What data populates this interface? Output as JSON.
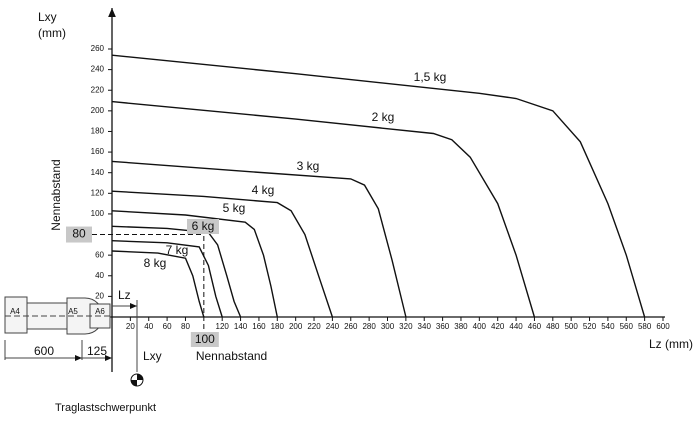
{
  "chart_data": {
    "type": "line",
    "y_label": "Lxy",
    "y_unit": "(mm)",
    "y_side_label": "Nennabstand",
    "x_label": "Lz (mm)",
    "xlim": [
      0,
      600
    ],
    "ylim": [
      0,
      260
    ],
    "xticks": [
      20,
      40,
      60,
      80,
      120,
      140,
      160,
      180,
      200,
      220,
      240,
      260,
      280,
      300,
      320,
      340,
      360,
      380,
      400,
      420,
      440,
      460,
      480,
      500,
      520,
      540,
      560,
      580,
      600
    ],
    "yticks": [
      20,
      40,
      60,
      100,
      120,
      140,
      160,
      180,
      200,
      220,
      240,
      260
    ],
    "nominal": {
      "lxy": 80,
      "lz": 100,
      "label": "Nennabstand",
      "series": 5
    },
    "color": "#111111",
    "series": [
      {
        "name": "1,5 kg",
        "x": [
          0,
          200,
          400,
          440,
          480,
          510,
          540,
          560,
          580
        ],
        "values": [
          254,
          236,
          217,
          212,
          200,
          170,
          110,
          60,
          0
        ]
      },
      {
        "name": "2 kg",
        "x": [
          0,
          200,
          350,
          370,
          390,
          420,
          440,
          460
        ],
        "values": [
          209,
          192,
          178,
          172,
          155,
          110,
          60,
          0
        ]
      },
      {
        "name": "3 kg",
        "x": [
          0,
          150,
          260,
          275,
          290,
          305,
          320
        ],
        "values": [
          151,
          141,
          134,
          128,
          105,
          55,
          0
        ]
      },
      {
        "name": "4 kg",
        "x": [
          0,
          100,
          180,
          195,
          210,
          225,
          240
        ],
        "values": [
          122,
          117,
          111,
          103,
          80,
          40,
          0
        ]
      },
      {
        "name": "5 kg",
        "x": [
          0,
          80,
          145,
          155,
          165,
          173,
          180
        ],
        "values": [
          103,
          99,
          92,
          85,
          60,
          30,
          0
        ]
      },
      {
        "name": "6 kg",
        "x": [
          0,
          60,
          105,
          115,
          125,
          133,
          140
        ],
        "values": [
          88,
          86,
          82,
          70,
          40,
          15,
          0
        ]
      },
      {
        "name": "7 kg",
        "x": [
          0,
          60,
          95,
          105,
          113,
          120
        ],
        "values": [
          74,
          72,
          68,
          50,
          20,
          0
        ]
      },
      {
        "name": "8 kg",
        "x": [
          0,
          50,
          80,
          88,
          95,
          100
        ],
        "values": [
          64,
          62,
          57,
          40,
          15,
          0
        ]
      }
    ],
    "robot": {
      "axes": [
        "A4",
        "A5",
        "A6"
      ],
      "dim_left": "600",
      "dim_right": "125",
      "lz_label": "Lz",
      "lxy_label": "Lxy",
      "caption": "Traglastschwerpunkt"
    }
  }
}
